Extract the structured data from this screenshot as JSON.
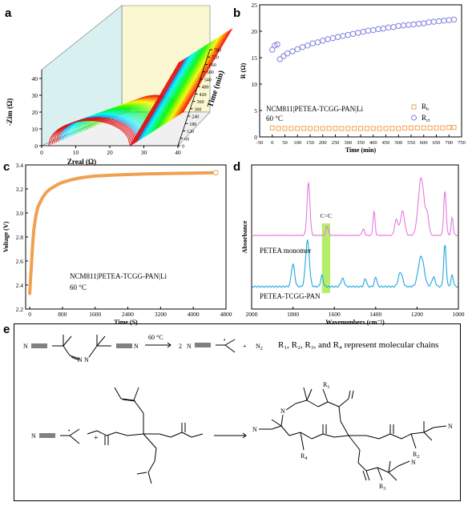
{
  "letters": {
    "a": "a",
    "b": "b",
    "c": "c",
    "d": "d",
    "e": "e"
  },
  "panel_a": {
    "xlabel": "Zreal (Ω)",
    "ylabel": "-Zim (Ω)",
    "zlabel": "Time (min)",
    "x_ticks": [
      "0",
      "10",
      "20",
      "30",
      "40"
    ],
    "y_ticks": [
      "0",
      "10",
      "20",
      "30",
      "40"
    ],
    "z_ticks": [
      "0",
      "60",
      "120",
      "180",
      "240",
      "300",
      "360",
      "420",
      "480",
      "540",
      "600",
      "660",
      "720",
      "780"
    ]
  },
  "chart_data": [
    {
      "type": "scatter",
      "panel": "b",
      "xlabel": "Time (min)",
      "ylabel": "R (Ω)",
      "xlim": [
        -50,
        750
      ],
      "ylim": [
        0,
        25
      ],
      "x_ticks": [
        "-50",
        "0",
        "50",
        "100",
        "150",
        "200",
        "250",
        "300",
        "350",
        "400",
        "450",
        "500",
        "550",
        "600",
        "650",
        "700",
        "750"
      ],
      "y_ticks": [
        "0",
        "5",
        "10",
        "15",
        "20",
        "25"
      ],
      "annotation": [
        "NCM811|PETEA-TCGG-PAN|Li",
        "60 °C"
      ],
      "series": [
        {
          "name": "Rb",
          "color": "#f0a050",
          "x": [
            0,
            25,
            50,
            75,
            100,
            125,
            150,
            175,
            200,
            225,
            250,
            275,
            300,
            325,
            350,
            375,
            400,
            425,
            450,
            475,
            500,
            525,
            550,
            575,
            600,
            625,
            650,
            675,
            700,
            720
          ],
          "y": [
            1.7,
            1.6,
            1.6,
            1.6,
            1.6,
            1.6,
            1.6,
            1.6,
            1.6,
            1.6,
            1.6,
            1.6,
            1.6,
            1.6,
            1.6,
            1.6,
            1.6,
            1.6,
            1.6,
            1.6,
            1.6,
            1.7,
            1.7,
            1.7,
            1.7,
            1.7,
            1.7,
            1.7,
            1.8,
            1.8
          ]
        },
        {
          "name": "Rct",
          "color": "#8080e0",
          "x": [
            0,
            10,
            20,
            30,
            45,
            60,
            80,
            100,
            120,
            140,
            160,
            180,
            200,
            220,
            240,
            260,
            280,
            300,
            320,
            340,
            360,
            380,
            400,
            420,
            440,
            460,
            480,
            500,
            520,
            540,
            560,
            580,
            600,
            620,
            640,
            660,
            680,
            700,
            720
          ],
          "y": [
            16.5,
            17.3,
            17.5,
            14.7,
            15.3,
            15.8,
            16.2,
            16.6,
            17.0,
            17.3,
            17.7,
            17.9,
            18.2,
            18.5,
            18.7,
            18.9,
            19.1,
            19.3,
            19.5,
            19.7,
            19.9,
            20.1,
            20.2,
            20.4,
            20.5,
            20.7,
            20.8,
            21.0,
            21.1,
            21.2,
            21.3,
            21.4,
            21.5,
            21.7,
            21.8,
            21.9,
            22.0,
            22.1,
            22.2
          ]
        }
      ],
      "legend": {
        "position": "bottom-right",
        "rb_base": "R",
        "rb_sub": "b",
        "rct_base": "R",
        "rct_sub": "ct"
      }
    },
    {
      "type": "line",
      "panel": "c",
      "xlabel": "Time (S)",
      "ylabel": "Voltage (V)",
      "xlim": [
        -100,
        4800
      ],
      "ylim": [
        2.2,
        3.4
      ],
      "x_ticks": [
        "0",
        "800",
        "1600",
        "2400",
        "3200",
        "4000",
        "4800"
      ],
      "y_ticks": [
        "2.2",
        "2.4",
        "2.6",
        "2.8",
        "3.0",
        "3.2",
        "3.4"
      ],
      "annotation": [
        "NCM811|PETEA-TCGG-PAN|Li",
        "60 °C"
      ],
      "series": [
        {
          "color": "#f0a050",
          "x": [
            0,
            20,
            40,
            60,
            80,
            100,
            150,
            200,
            300,
            400,
            500,
            600,
            700,
            800,
            1000,
            1200,
            1400,
            1600,
            2000,
            2400,
            2800,
            3200,
            3600,
            4000,
            4400,
            4550
          ],
          "y": [
            2.33,
            2.45,
            2.55,
            2.68,
            2.78,
            2.86,
            2.98,
            3.05,
            3.12,
            3.17,
            3.2,
            3.22,
            3.24,
            3.255,
            3.275,
            3.29,
            3.3,
            3.307,
            3.315,
            3.32,
            3.325,
            3.327,
            3.33,
            3.332,
            3.334,
            3.336
          ]
        }
      ]
    },
    {
      "type": "line",
      "panel": "d",
      "xlabel": "Wavenumbers (cm⁻¹)",
      "ylabel": "Absorbance",
      "xlim": [
        2000,
        1000
      ],
      "x_ticks": [
        "2000",
        "1800",
        "1600",
        "1400",
        "1200",
        "1000"
      ],
      "annotation": "C=C",
      "highlight": [
        1620,
        1660
      ],
      "series": [
        {
          "name": "PETEA monomer",
          "color": "#e878e0"
        },
        {
          "name": "PETEA-TCGG-PAN",
          "color": "#20a8e0"
        }
      ]
    }
  ],
  "panel_e": {
    "cond": "60 °C",
    "two": "2",
    "plus": "+",
    "n2": "N",
    "n2_sub": "2",
    "rep": "R₁, R₂, R₃, and R₄ represent molecular chains",
    "N": "N",
    "R1": "R",
    "R1s": "1",
    "R2": "R",
    "R2s": "2",
    "R3": "R",
    "R3s": "3",
    "R4": "R",
    "R4s": "4"
  }
}
